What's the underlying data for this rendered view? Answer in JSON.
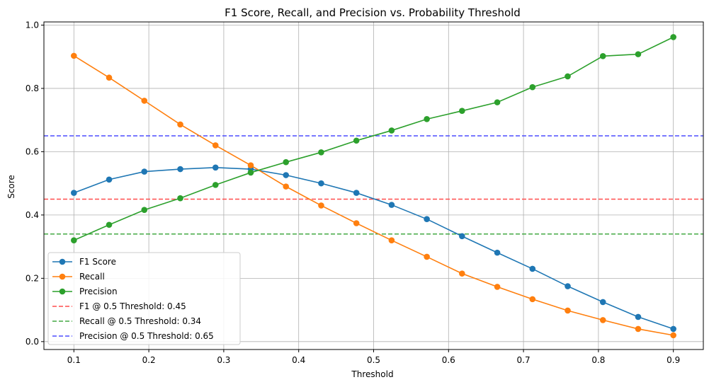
{
  "chart_data": {
    "type": "line",
    "title": "F1 Score, Recall, and Precision vs. Probability Threshold",
    "xlabel": "Threshold",
    "ylabel": "Score",
    "xlim": [
      0.06,
      0.94
    ],
    "ylim": [
      -0.025,
      1.01
    ],
    "grid": true,
    "legend_position": "lower-left",
    "x": [
      0.1,
      0.147,
      0.194,
      0.242,
      0.289,
      0.336,
      0.383,
      0.43,
      0.477,
      0.524,
      0.571,
      0.618,
      0.665,
      0.712,
      0.759,
      0.806,
      0.853,
      0.9
    ],
    "x_ticks": [
      "0.1",
      "0.2",
      "0.3",
      "0.4",
      "0.5",
      "0.6",
      "0.7",
      "0.8",
      "0.9"
    ],
    "x_tick_values": [
      0.1,
      0.2,
      0.3,
      0.4,
      0.5,
      0.6,
      0.7,
      0.8,
      0.9
    ],
    "y_ticks": [
      "0.0",
      "0.2",
      "0.4",
      "0.6",
      "0.8",
      "1.0"
    ],
    "y_tick_values": [
      0.0,
      0.2,
      0.4,
      0.6,
      0.8,
      1.0
    ],
    "series": [
      {
        "name": "F1 Score",
        "color": "#1f77b4",
        "style": "solid-marker",
        "values": [
          0.47,
          0.512,
          0.537,
          0.545,
          0.55,
          0.545,
          0.526,
          0.5,
          0.47,
          0.432,
          0.387,
          0.333,
          0.281,
          0.23,
          0.175,
          0.125,
          0.078,
          0.04
        ]
      },
      {
        "name": "Recall",
        "color": "#ff7f0e",
        "style": "solid-marker",
        "values": [
          0.903,
          0.834,
          0.761,
          0.686,
          0.62,
          0.557,
          0.49,
          0.43,
          0.374,
          0.32,
          0.268,
          0.215,
          0.173,
          0.134,
          0.098,
          0.068,
          0.04,
          0.02
        ]
      },
      {
        "name": "Precision",
        "color": "#2ca02c",
        "style": "solid-marker",
        "values": [
          0.32,
          0.369,
          0.416,
          0.453,
          0.495,
          0.534,
          0.567,
          0.598,
          0.635,
          0.667,
          0.703,
          0.729,
          0.756,
          0.804,
          0.838,
          0.902,
          0.908,
          0.962
        ]
      }
    ],
    "reference_lines": [
      {
        "name": "F1 @ 0.5 Threshold: 0.45",
        "value": 0.45,
        "color": "#ff4d4d",
        "style": "dashed"
      },
      {
        "name": "Recall @ 0.5 Threshold: 0.34",
        "value": 0.34,
        "color": "#43a943",
        "style": "dashed"
      },
      {
        "name": "Precision @ 0.5 Threshold: 0.65",
        "value": 0.65,
        "color": "#4d4dff",
        "style": "dashed"
      }
    ]
  }
}
